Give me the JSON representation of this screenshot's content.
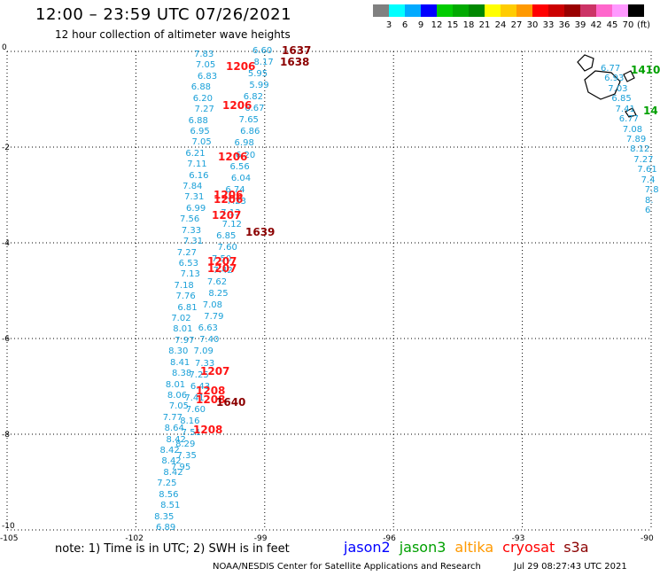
{
  "header": {
    "title": "12:00 – 23:59 UTC 07/26/2021",
    "subtitle": "12 hour collection of altimeter wave heights"
  },
  "legend": {
    "colors": [
      "#808080",
      "#00ffff",
      "#00aaff",
      "#0000ff",
      "#00cc00",
      "#00aa00",
      "#008800",
      "#ffff00",
      "#ffcc00",
      "#ff9900",
      "#ff0000",
      "#cc0000",
      "#990000",
      "#cc3366",
      "#ff66cc",
      "#ff99ff",
      "#000000"
    ],
    "labels": [
      "3",
      "6",
      "9",
      "12",
      "15",
      "18",
      "21",
      "24",
      "27",
      "30",
      "33",
      "36",
      "39",
      "42",
      "45",
      "70"
    ],
    "unit": "(ft)"
  },
  "axes": {
    "y_ticks": [
      "0",
      "-2",
      "-4",
      "-6",
      "-8",
      "-10"
    ],
    "x_ticks": [
      "-105",
      "-102",
      "-99",
      "-96",
      "-93",
      "-90"
    ]
  },
  "track_values": {
    "left_column": [
      "7.83",
      "7.05",
      "6.83",
      "6.88",
      "6.20",
      "7.27",
      "6.88",
      "6.95",
      "7.05",
      "6.21",
      "7.11",
      "6.16",
      "7.84",
      "7.31",
      "6.99",
      "7.56",
      "7.33",
      "7.31",
      "7.27",
      "6.53",
      "7.13",
      "7.18",
      "7.76",
      "6.81",
      "7.02",
      "8.01",
      "7.97",
      "8.30",
      "8.41",
      "8.38",
      "8.01",
      "8.06",
      "7.05",
      "7.77",
      "8.64",
      "8.42",
      "8.42",
      "8.42",
      "8.42",
      "7.25",
      "8.56",
      "8.51",
      "8.35",
      "6.89"
    ],
    "right_column": [
      "6.60",
      "8.17",
      "5.95",
      "5.99",
      "6.82",
      "6.67",
      "7.65",
      "6.86",
      "6.98",
      "6.20",
      "6.56",
      "6.04",
      "6.74",
      "7.23",
      "7.13",
      "7.12",
      "6.85",
      "7.60",
      "7.50",
      "7.42",
      "7.62",
      "8.25",
      "7.08",
      "7.79",
      "6.63",
      "7.40",
      "7.09",
      "7.33",
      "7.25",
      "6.43",
      "7.41",
      "7.60",
      "8.16",
      "7.51",
      "8.29",
      "7.35",
      "7.95"
    ],
    "east_column": [
      "6.77",
      "6.93",
      "7.03",
      "6.85",
      "7.41",
      "6.77",
      "7.08",
      "7.89",
      "8.12",
      "7.27",
      "7.61",
      "7.4",
      "7.8",
      "8.",
      "6"
    ]
  },
  "track_times": {
    "red": [
      "1206",
      "1206",
      "1206",
      "1206",
      "1206",
      "1207",
      "1207",
      "1207",
      "1207",
      "1208",
      "1208",
      "1208"
    ],
    "dark": [
      "1637",
      "1638",
      "1639",
      "1640"
    ],
    "green": [
      "1410",
      "14"
    ]
  },
  "footer": {
    "note": "note:  1) Time is in UTC; 2) SWH is in feet",
    "satellites": [
      {
        "name": "jason2",
        "color": "#0000ff"
      },
      {
        "name": "jason3",
        "color": "#00a000"
      },
      {
        "name": "altika",
        "color": "#ff9900"
      },
      {
        "name": "cryosat",
        "color": "#ff0000"
      },
      {
        "name": "s3a",
        "color": "#8b0000"
      }
    ],
    "credit": "NOAA/NESDIS Center for Satellite Applications and Research",
    "timestamp": "Jul 29 08:27:43 UTC 2021"
  }
}
